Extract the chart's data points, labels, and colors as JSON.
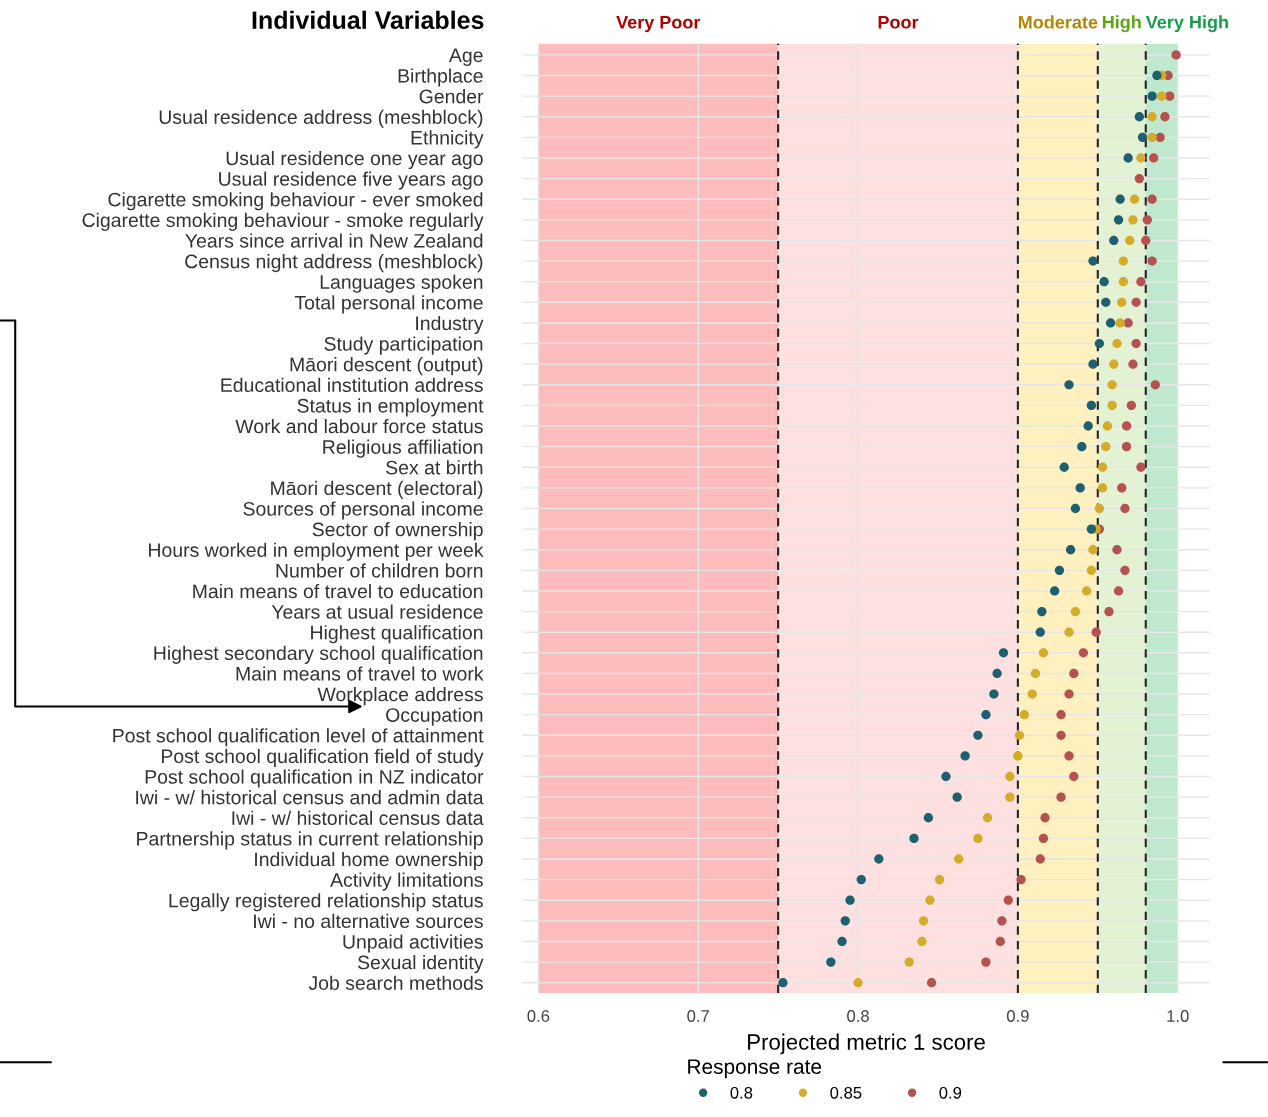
{
  "chart_data": {
    "type": "scatter",
    "orientation": "horizontal",
    "title": "Individual Variables",
    "xlabel": "Projected metric 1 score",
    "legend_title": "Response rate",
    "legend": "bottom",
    "grid": true,
    "marker": "circle",
    "categories": [
      "Age",
      "Birthplace",
      "Gender",
      "Usual residence address (meshblock)",
      "Ethnicity",
      "Usual residence one year ago",
      "Usual residence five years ago",
      "Cigarette smoking behaviour - ever smoked",
      "Cigarette smoking behaviour - smoke regularly",
      "Years since arrival in New Zealand",
      "Census night address (meshblock)",
      "Languages spoken",
      "Total personal income",
      "Industry",
      "Study participation",
      "Māori descent (output)",
      "Educational institution address",
      "Status in employment",
      "Work and labour force status",
      "Religious affiliation",
      "Sex at birth",
      "Māori descent (electoral)",
      "Sources of personal income",
      "Sector of ownership",
      "Hours worked in employment per week",
      "Number of children born",
      "Main means of travel to education",
      "Years at usual residence",
      "Highest qualification",
      "Highest secondary school qualification",
      "Main means of travel to work",
      "Workplace address",
      "Occupation",
      "Post school qualification level of attainment",
      "Post school qualification field of study",
      "Post school qualification in NZ indicator",
      "Iwi - w/ historical census and admin data",
      "Iwi - w/ historical census data",
      "Partnership status in current relationship",
      "Individual home ownership",
      "Activity limitations",
      "Legally registered relationship status",
      "Iwi - no alternative sources",
      "Unpaid activities",
      "Sexual identity",
      "Job search methods"
    ],
    "series": [
      {
        "name": "0.8",
        "color": "#1f6070",
        "values": [
          null,
          0.987,
          0.984,
          0.976,
          0.978,
          0.969,
          null,
          0.964,
          0.963,
          0.96,
          0.947,
          0.954,
          0.955,
          0.958,
          0.951,
          0.947,
          0.932,
          0.946,
          0.944,
          0.94,
          0.929,
          0.939,
          0.936,
          0.946,
          0.933,
          0.926,
          0.923,
          0.915,
          0.914,
          0.891,
          0.887,
          0.885,
          0.88,
          0.875,
          0.867,
          0.855,
          0.862,
          0.844,
          0.835,
          0.813,
          0.802,
          0.795,
          0.792,
          0.79,
          0.783,
          0.753
        ]
      },
      {
        "name": "0.85",
        "color": "#d4ac2a",
        "values": [
          null,
          0.99,
          0.99,
          0.984,
          0.984,
          0.977,
          null,
          0.973,
          0.972,
          0.97,
          0.966,
          0.966,
          0.965,
          0.964,
          0.962,
          0.96,
          0.959,
          0.959,
          0.956,
          0.955,
          0.953,
          0.953,
          0.951,
          0.949,
          0.947,
          0.946,
          0.943,
          0.936,
          0.932,
          0.916,
          0.911,
          0.909,
          0.904,
          0.901,
          0.9,
          0.895,
          0.895,
          0.881,
          0.875,
          0.863,
          0.851,
          0.845,
          0.841,
          0.84,
          0.832,
          0.8
        ]
      },
      {
        "name": "0.9",
        "color": "#b5524f",
        "values": [
          0.999,
          0.994,
          0.995,
          0.992,
          0.989,
          0.985,
          0.976,
          0.984,
          0.981,
          0.98,
          0.984,
          0.977,
          0.974,
          0.969,
          0.974,
          0.972,
          0.986,
          0.971,
          0.968,
          0.968,
          0.977,
          0.965,
          0.967,
          0.951,
          0.962,
          0.967,
          0.963,
          0.957,
          0.949,
          0.941,
          0.935,
          0.932,
          0.927,
          0.927,
          0.932,
          0.935,
          0.927,
          0.917,
          0.916,
          0.914,
          0.902,
          0.894,
          0.89,
          0.889,
          0.88,
          0.846
        ]
      }
    ],
    "xlim": [
      0.59,
      1.02
    ],
    "xticks": [
      0.6,
      0.7,
      0.8,
      0.9,
      {
        "value": 1.0,
        "label": "1.0"
      }
    ],
    "bands": [
      {
        "axis": "x",
        "from": 0.6,
        "to": 0.75,
        "label": "Very Poor",
        "color": "#ffbcbc"
      },
      {
        "axis": "x",
        "from": 0.75,
        "to": 0.9,
        "label": "Poor",
        "color": "#ffe0e0"
      },
      {
        "axis": "x",
        "from": 0.9,
        "to": 0.95,
        "label": "Moderate",
        "color": "#fff0c0"
      },
      {
        "axis": "x",
        "from": 0.95,
        "to": 0.98,
        "label": "High",
        "color": "#e4f2d4"
      },
      {
        "axis": "x",
        "from": 0.98,
        "to": 1.0,
        "label": "Very High",
        "color": "#bfe8cf"
      }
    ],
    "ref_lines": [
      {
        "axis": "x",
        "value": 0.75,
        "line_style": "dashed",
        "color": "#222222"
      },
      {
        "axis": "x",
        "value": 0.9,
        "line_style": "dashed",
        "color": "#222222"
      },
      {
        "axis": "x",
        "value": 0.95,
        "line_style": "dashed",
        "color": "#222222"
      },
      {
        "axis": "x",
        "value": 0.98,
        "line_style": "dashed",
        "color": "#222222"
      }
    ]
  }
}
